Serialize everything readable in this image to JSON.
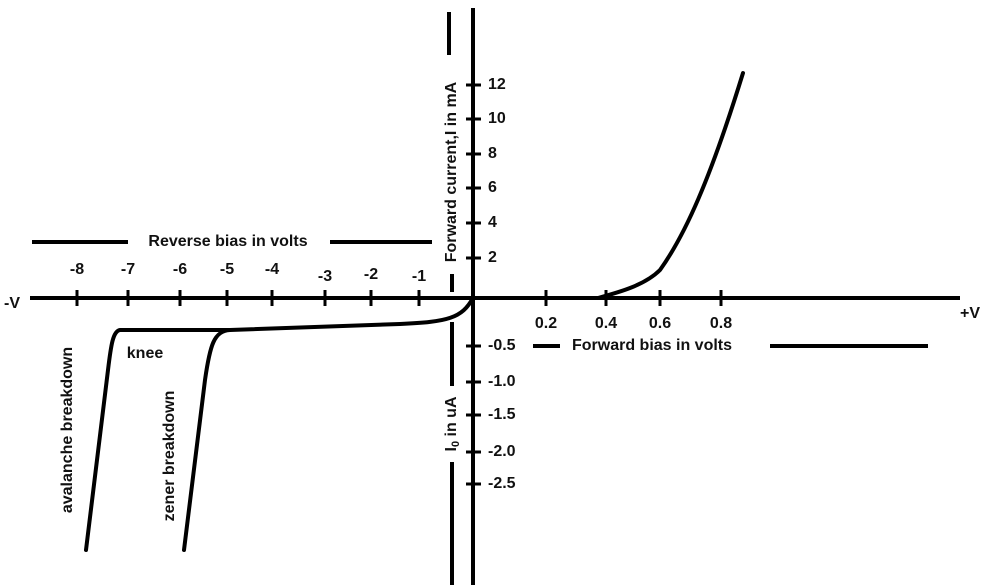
{
  "axes": {
    "neg_end": "-V",
    "pos_end": "+V",
    "reverse_title": "Reverse bias in volts",
    "reverse_ticks": [
      "-8",
      "-7",
      "-6",
      "-5",
      "-4",
      "-3",
      "-2",
      "-1"
    ],
    "forward_title": "Forward bias in volts",
    "forward_ticks": [
      "0.2",
      "0.4",
      "0.6",
      "0.8"
    ],
    "current_title": "Forward current,I in mA",
    "current_ticks": [
      "12",
      "10",
      "8",
      "6",
      "4",
      "2"
    ],
    "leakage_title": {
      "main": "I",
      "sub": "0",
      "rest": " in uA"
    },
    "leakage_ticks": [
      "-0.5",
      "-1.0",
      "-1.5",
      "-2.0",
      "-2.5"
    ]
  },
  "annotations": {
    "knee": "knee",
    "avalanche": "avalanche breakdown",
    "zener": "zener breakdown"
  }
}
